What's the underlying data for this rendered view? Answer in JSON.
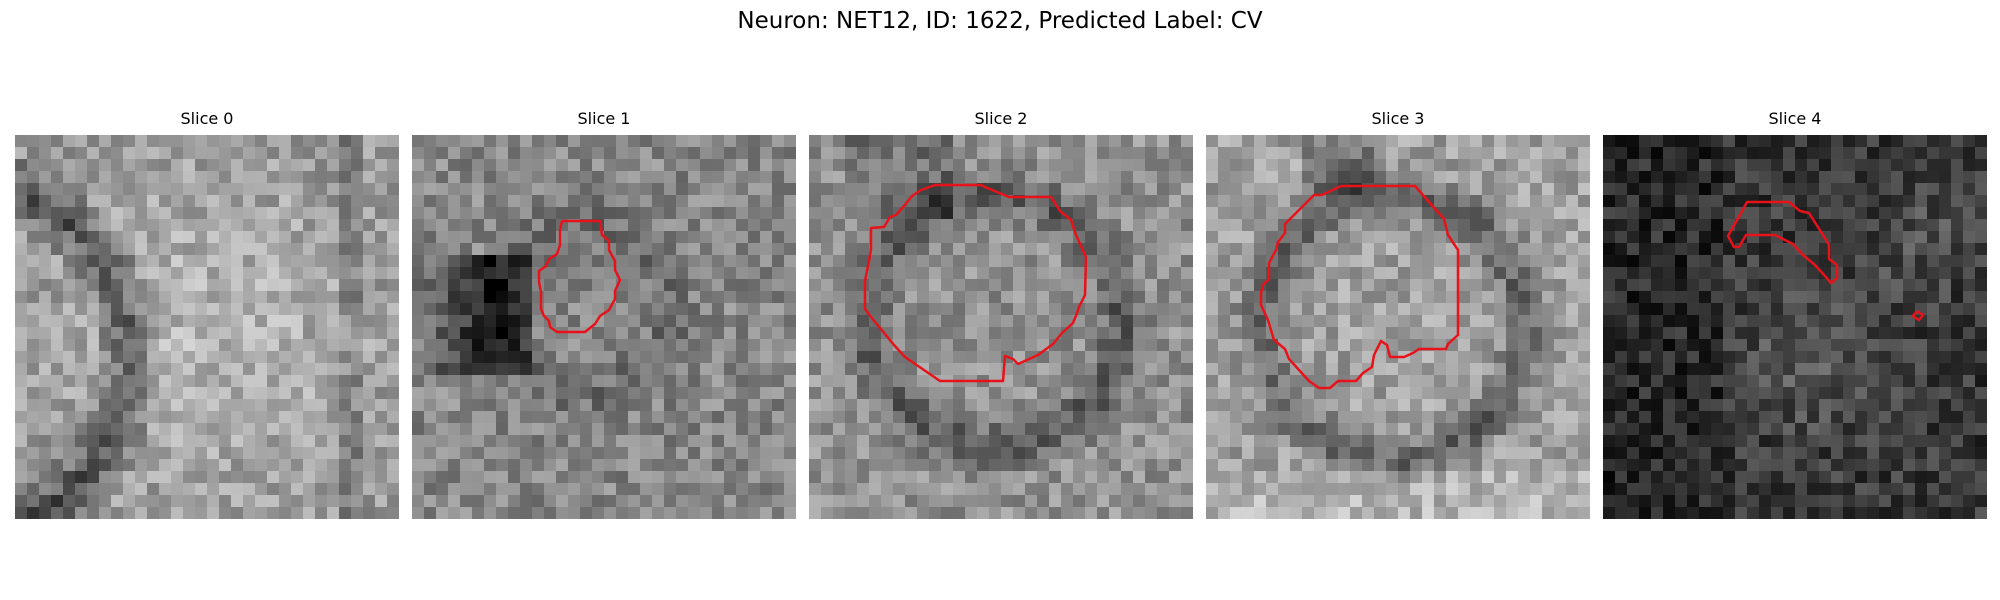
{
  "figure": {
    "suptitle": "Neuron: NET12, ID: 1622, Predicted Label: CV"
  },
  "panels": [
    {
      "title": "Slice 0",
      "tone": 150,
      "seed": 11,
      "has_contour": false
    },
    {
      "title": "Slice 1",
      "tone": 135,
      "seed": 23,
      "has_contour": true
    },
    {
      "title": "Slice 2",
      "tone": 145,
      "seed": 37,
      "has_contour": true
    },
    {
      "title": "Slice 3",
      "tone": 160,
      "seed": 41,
      "has_contour": true
    },
    {
      "title": "Slice 4",
      "tone": 55,
      "seed": 53,
      "has_contour": true
    }
  ],
  "colors": {
    "contour": "#e8121a"
  }
}
